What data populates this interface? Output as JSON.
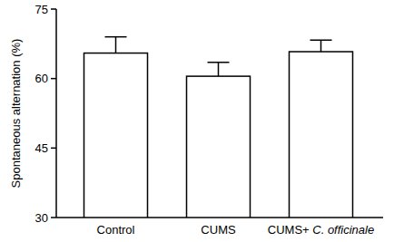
{
  "chart_data": {
    "type": "bar",
    "y_label": "Spontaneous alternation (%)",
    "categories": [
      "Control",
      "CUMS",
      "CUMS+ C. officinale"
    ],
    "values": [
      65.5,
      60.5,
      65.8
    ],
    "errors": [
      3.5,
      3.0,
      2.5
    ],
    "color": "#ffffff",
    "ylim": [
      30,
      75
    ],
    "yticks": [
      30,
      45,
      60,
      75
    ],
    "grid": false
  }
}
